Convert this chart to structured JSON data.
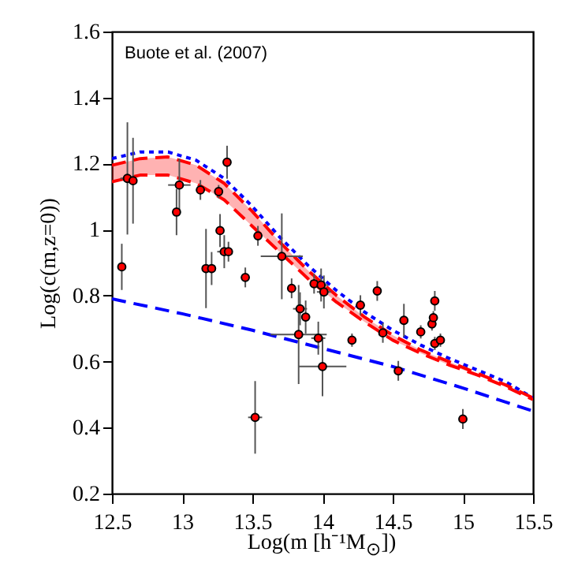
{
  "chart_data": {
    "type": "scatter",
    "xlabel": "Log(m [h⁻¹M$_{⊙}$])",
    "ylabel": "Log(c(m,z=0))",
    "annotations": [
      "Buote et al. (2007)"
    ],
    "xlim": [
      12.5,
      15.5
    ],
    "xticks": [
      12.5,
      13,
      13.5,
      14,
      14.5,
      15,
      15.5
    ],
    "ylim": [
      0.2,
      1.6
    ],
    "yticks": [
      0.2,
      0.4,
      0.6,
      0.8,
      1,
      1.2,
      1.4,
      1.6
    ],
    "series": [
      {
        "type": "line",
        "color": "#0000ff",
        "line_style": "dotted",
        "x": [
          12.5,
          12.7,
          12.9,
          13.1,
          13.3,
          13.5,
          13.7,
          13.9,
          14.1,
          14.3,
          14.5,
          14.7,
          14.9,
          15.1,
          15.3,
          15.5
        ],
        "values": [
          1.215,
          1.235,
          1.235,
          1.21,
          1.155,
          1.07,
          0.975,
          0.89,
          0.815,
          0.75,
          0.695,
          0.65,
          0.61,
          0.575,
          0.54,
          0.49
        ]
      },
      {
        "type": "line",
        "color": "#ff0000",
        "line_style": "dashed",
        "x": [
          12.5,
          12.7,
          12.9,
          13.1,
          13.3,
          13.5,
          13.7,
          13.9,
          14.1,
          14.3,
          14.5,
          14.7,
          14.9,
          15.1,
          15.3,
          15.5
        ],
        "values": [
          1.195,
          1.215,
          1.22,
          1.195,
          1.14,
          1.055,
          0.96,
          0.875,
          0.8,
          0.735,
          0.68,
          0.635,
          0.6,
          0.565,
          0.53,
          0.49
        ],
        "lower": [
          1.145,
          1.165,
          1.165,
          1.14,
          1.09,
          1.01,
          0.93,
          0.85,
          0.78,
          0.72,
          0.665,
          0.625,
          0.59,
          0.56,
          0.525,
          0.485
        ],
        "upper": [
          1.195,
          1.215,
          1.22,
          1.195,
          1.14,
          1.055,
          0.96,
          0.875,
          0.8,
          0.735,
          0.68,
          0.635,
          0.6,
          0.565,
          0.53,
          0.49
        ]
      },
      {
        "type": "line",
        "color": "#ff0000",
        "line_style": "dashed",
        "x": [
          12.5,
          12.7,
          12.9,
          13.1,
          13.3,
          13.5,
          13.7,
          13.9,
          14.1,
          14.3,
          14.5,
          14.7,
          14.9,
          15.1,
          15.3,
          15.5
        ],
        "values": [
          1.145,
          1.165,
          1.165,
          1.14,
          1.09,
          1.01,
          0.93,
          0.85,
          0.78,
          0.72,
          0.665,
          0.625,
          0.59,
          0.56,
          0.525,
          0.485
        ]
      },
      {
        "type": "line",
        "color": "#0000ff",
        "line_style": "dashed",
        "x": [
          12.5,
          13,
          13.5,
          14,
          14.5,
          15,
          15.5
        ],
        "values": [
          0.79,
          0.745,
          0.695,
          0.64,
          0.585,
          0.52,
          0.45
        ]
      },
      {
        "type": "scatter",
        "color": "#ff0000",
        "marker": "circle",
        "x": [
          12.57,
          12.61,
          12.65,
          12.96,
          12.98,
          13.13,
          13.17,
          13.21,
          13.26,
          13.27,
          13.3,
          13.33,
          13.32,
          13.45,
          13.52,
          13.54,
          13.71,
          13.78,
          13.84,
          13.83,
          13.88,
          13.94,
          13.97,
          13.99,
          14.0,
          14.01,
          14.21,
          14.27,
          14.39,
          14.43,
          14.54,
          14.58,
          14.7,
          14.78,
          14.79,
          14.8,
          14.8,
          14.84,
          15.0
        ],
        "values": [
          0.887,
          1.155,
          1.148,
          1.053,
          1.135,
          1.12,
          0.882,
          0.882,
          1.115,
          0.997,
          0.933,
          0.933,
          1.204,
          0.855,
          0.431,
          0.981,
          0.919,
          0.822,
          0.76,
          0.682,
          0.735,
          0.836,
          0.671,
          0.832,
          0.585,
          0.811,
          0.665,
          0.771,
          0.814,
          0.687,
          0.572,
          0.725,
          0.69,
          0.714,
          0.733,
          0.784,
          0.655,
          0.665,
          0.426
        ],
        "errors": [
          0.07,
          0.17,
          0.13,
          0.07,
          0.08,
          0.03,
          0.12,
          0.05,
          0.02,
          0.05,
          0.05,
          0.03,
          0.05,
          0.03,
          0.11,
          0.03,
          0.13,
          0.03,
          0.05,
          0.15,
          0.05,
          0.03,
          0.05,
          0.05,
          0.09,
          0.05,
          0.02,
          0.03,
          0.03,
          0.03,
          0.03,
          0.05,
          0.02,
          0.02,
          0.02,
          0.03,
          0.02,
          0.02,
          0.03
        ],
        "xerrors": [
          0.02,
          0.05,
          0.03,
          0.02,
          0.08,
          0.03,
          0.03,
          0.03,
          0.03,
          0.03,
          0.05,
          0.03,
          0.03,
          0.03,
          0.05,
          0.02,
          0.15,
          0.03,
          0.05,
          0.2,
          0.03,
          0.03,
          0.05,
          0.05,
          0.17,
          0.05,
          0.02,
          0.03,
          0.03,
          0.03,
          0.03,
          0.03,
          0.03,
          0.03,
          0.03,
          0.03,
          0.03,
          0.03,
          0.03
        ]
      }
    ]
  }
}
